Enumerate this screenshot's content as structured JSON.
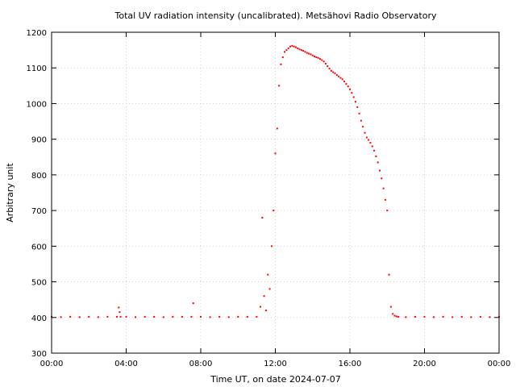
{
  "chart_data": {
    "type": "scatter",
    "title": "Total UV radiation intensity (uncalibrated). Metsähovi Radio Observatory",
    "xlabel": "Time UT, on date 2024-07-07",
    "ylabel": "Arbitrary unit",
    "xlim": [
      0,
      24
    ],
    "ylim": [
      300,
      1200
    ],
    "x_ticks": [
      0,
      4,
      8,
      12,
      16,
      20,
      24
    ],
    "x_tick_labels": [
      "00:00",
      "04:00",
      "08:00",
      "12:00",
      "16:00",
      "20:00",
      "00:00"
    ],
    "y_ticks": [
      300,
      400,
      500,
      600,
      700,
      800,
      900,
      1000,
      1100,
      1200
    ],
    "y_tick_labels": [
      "300",
      "400",
      "500",
      "600",
      "700",
      "800",
      "900",
      "1000",
      "1100",
      "1200"
    ],
    "grid": true,
    "series_color": "#ff0000",
    "series": [
      {
        "x": [
          0.0,
          0.5,
          1.0,
          1.5,
          2.0,
          2.5,
          3.0,
          3.5,
          3.6,
          3.65,
          3.7,
          4.0,
          4.5,
          5.0,
          5.5,
          6.0,
          6.5,
          7.0,
          7.5,
          7.6,
          8.0,
          8.5,
          9.0,
          9.5,
          10.0,
          10.5,
          11.0,
          11.2,
          11.3,
          11.4,
          11.5,
          11.6,
          11.7,
          11.8,
          11.9,
          12.0,
          12.1,
          12.2,
          12.3,
          12.4,
          12.5,
          12.6,
          12.7,
          12.8,
          12.9,
          13.0,
          13.1,
          13.2,
          13.3,
          13.4,
          13.5,
          13.6,
          13.7,
          13.8,
          13.9,
          14.0,
          14.1,
          14.2,
          14.3,
          14.4,
          14.5,
          14.6,
          14.7,
          14.8,
          14.9,
          15.0,
          15.1,
          15.2,
          15.3,
          15.4,
          15.5,
          15.6,
          15.7,
          15.8,
          15.9,
          16.0,
          16.1,
          16.2,
          16.3,
          16.4,
          16.5,
          16.6,
          16.7,
          16.8,
          16.9,
          17.0,
          17.1,
          17.2,
          17.3,
          17.4,
          17.5,
          17.6,
          17.7,
          17.8,
          17.9,
          18.0,
          18.1,
          18.2,
          18.3,
          18.4,
          18.5,
          18.6,
          19.0,
          19.5,
          20.0,
          20.5,
          21.0,
          21.5,
          22.0,
          22.5,
          23.0,
          23.5,
          24.0
        ],
        "y": [
          402,
          401,
          402,
          401,
          402,
          401,
          402,
          402,
          428,
          415,
          402,
          402,
          401,
          402,
          402,
          401,
          402,
          402,
          402,
          440,
          402,
          401,
          402,
          401,
          402,
          402,
          402,
          430,
          680,
          460,
          420,
          520,
          480,
          600,
          700,
          860,
          930,
          1050,
          1110,
          1130,
          1145,
          1150,
          1155,
          1160,
          1162,
          1160,
          1158,
          1155,
          1152,
          1150,
          1148,
          1145,
          1142,
          1140,
          1138,
          1135,
          1132,
          1130,
          1128,
          1125,
          1122,
          1118,
          1112,
          1105,
          1098,
          1092,
          1088,
          1085,
          1080,
          1076,
          1072,
          1068,
          1062,
          1055,
          1048,
          1040,
          1030,
          1018,
          1005,
          990,
          972,
          952,
          935,
          918,
          905,
          898,
          890,
          880,
          868,
          852,
          835,
          812,
          790,
          762,
          730,
          700,
          520,
          430,
          410,
          405,
          403,
          402,
          401,
          402,
          402,
          401,
          402,
          401,
          402,
          401,
          402,
          401,
          402
        ]
      }
    ]
  }
}
